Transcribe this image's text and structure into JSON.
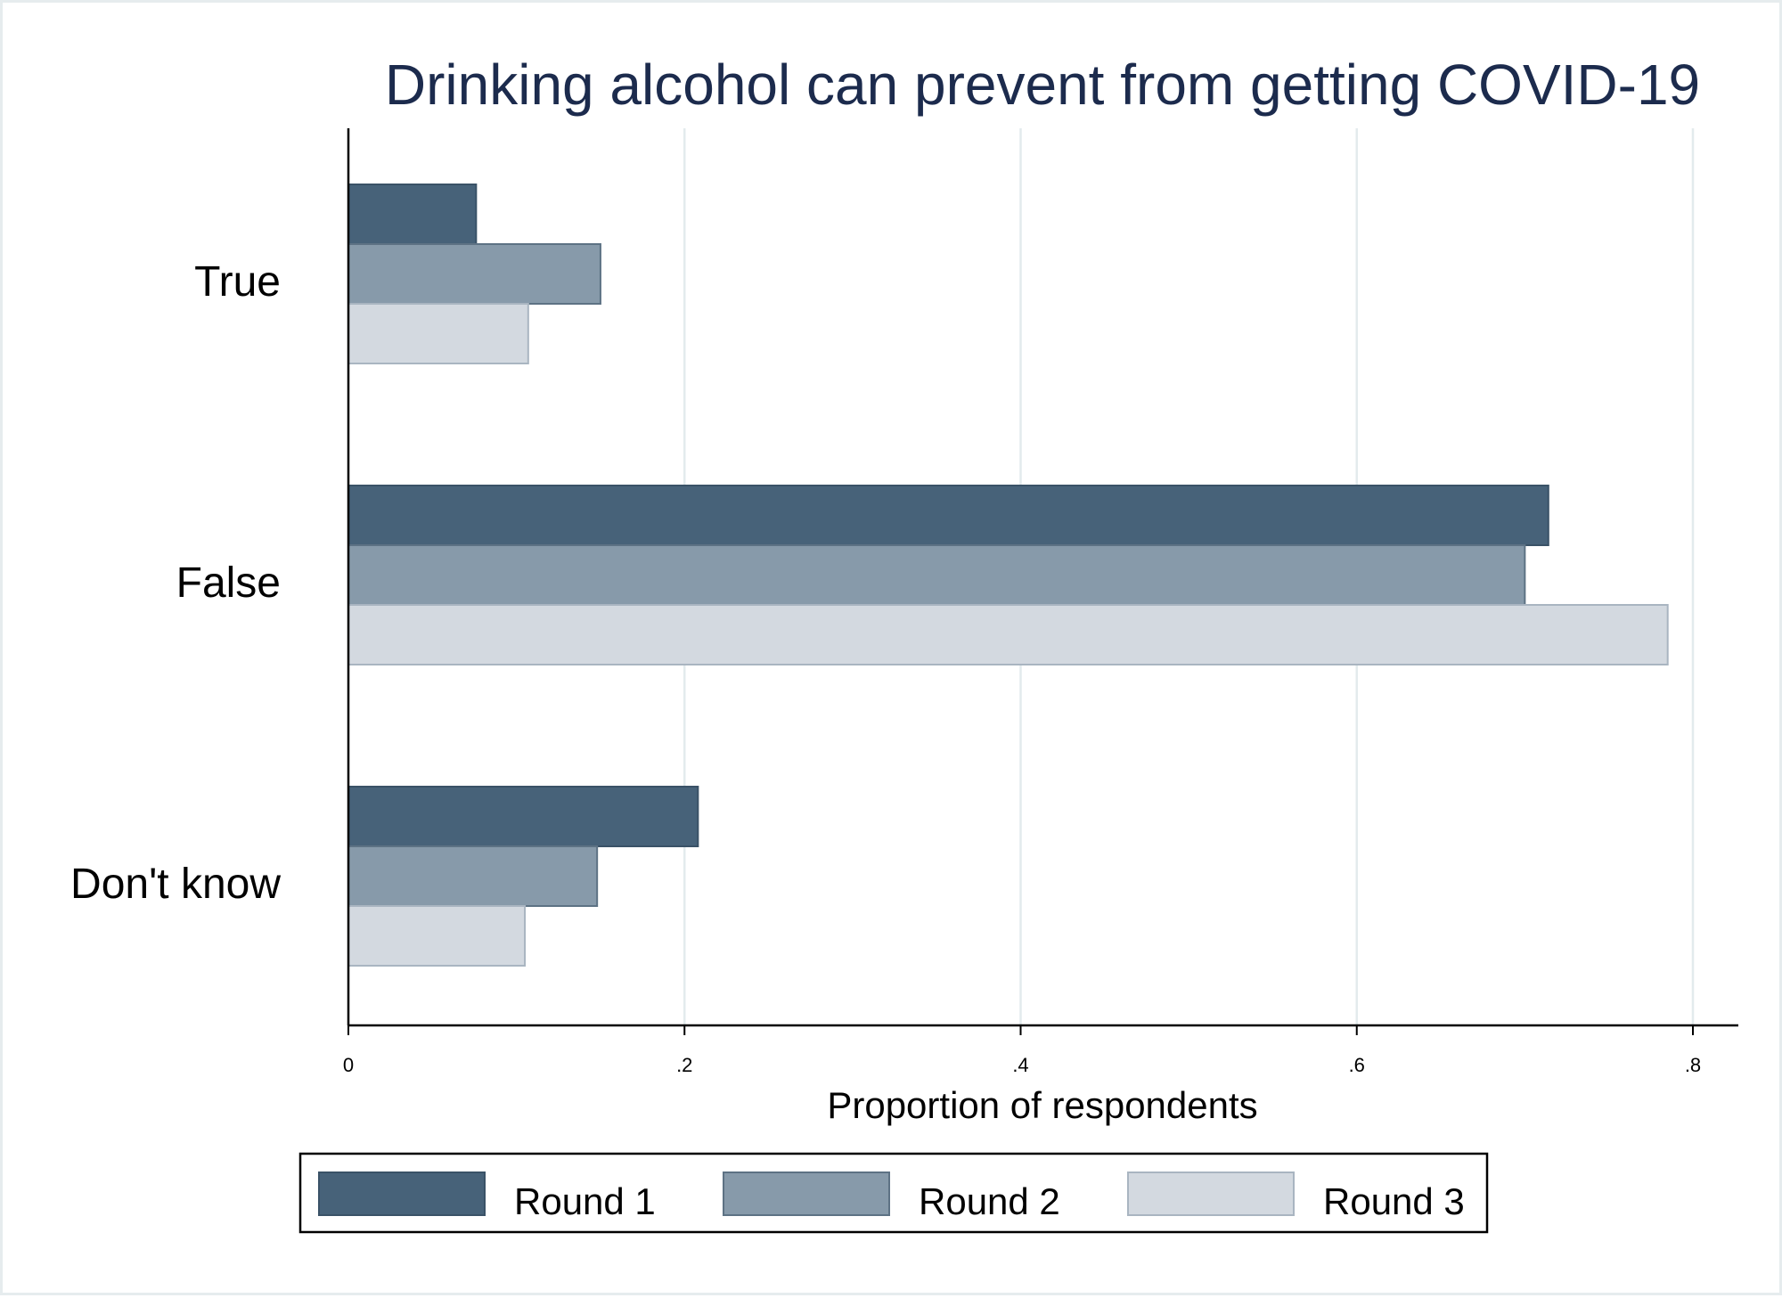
{
  "chart_data": {
    "type": "bar",
    "orientation": "horizontal",
    "title": "Drinking alcohol can prevent from getting COVID-19",
    "xlabel": "Proportion of respondents",
    "ylabel": "",
    "xlim": [
      0,
      0.826
    ],
    "x_ticks": [
      0,
      0.2,
      0.4,
      0.6,
      0.8
    ],
    "x_tick_labels": [
      "0",
      ".2",
      ".4",
      ".6",
      ".8"
    ],
    "categories": [
      "True",
      "False",
      "Don't know"
    ],
    "series": [
      {
        "name": "Round 1",
        "values": [
          0.076,
          0.714,
          0.208
        ],
        "color": "#476279",
        "stroke": "#3a5267"
      },
      {
        "name": "Round 2",
        "values": [
          0.15,
          0.7,
          0.148
        ],
        "color": "#879aaa",
        "stroke": "#5d7284"
      },
      {
        "name": "Round 3",
        "values": [
          0.107,
          0.785,
          0.105
        ],
        "color": "#d3d9e0",
        "stroke": "#a9b5c1"
      }
    ],
    "grid": true,
    "legend": "bottom"
  }
}
